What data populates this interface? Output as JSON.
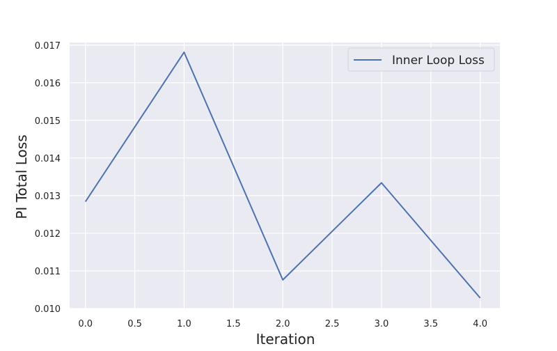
{
  "chart_data": {
    "type": "line",
    "title": "",
    "xlabel": "Iteration",
    "ylabel": "PI Total Loss",
    "xlim": [
      -0.16,
      4.2
    ],
    "ylim": [
      0.01,
      0.01707
    ],
    "xticks": [
      0.0,
      0.5,
      1.0,
      1.5,
      2.0,
      2.5,
      3.0,
      3.5,
      4.0
    ],
    "xtick_labels": [
      "0.0",
      "0.5",
      "1.0",
      "1.5",
      "2.0",
      "2.5",
      "3.0",
      "3.5",
      "4.0"
    ],
    "yticks": [
      0.01,
      0.011,
      0.012,
      0.013,
      0.014,
      0.015,
      0.016,
      0.017
    ],
    "ytick_labels": [
      "0.010",
      "0.011",
      "0.012",
      "0.013",
      "0.014",
      "0.015",
      "0.016",
      "0.017"
    ],
    "grid": true,
    "legend": {
      "position": "top-right",
      "entries": [
        "Inner Loop Loss"
      ]
    },
    "colors": {
      "background": "#eaeaf2",
      "grid": "#ffffff",
      "series": "#4c72b0"
    },
    "series": [
      {
        "name": "Inner Loop Loss",
        "x": [
          0,
          1,
          2,
          3,
          4
        ],
        "y": [
          0.01284,
          0.01681,
          0.01076,
          0.01334,
          0.01028
        ]
      }
    ]
  }
}
